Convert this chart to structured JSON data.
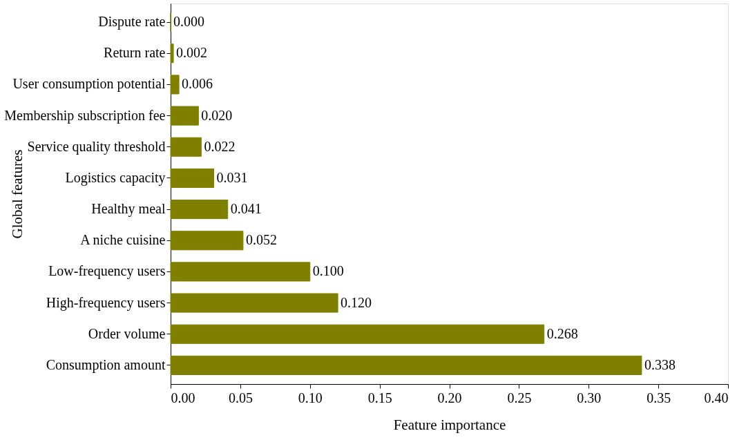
{
  "chart_data": {
    "type": "bar",
    "orientation": "horizontal",
    "xlabel": "Feature importance",
    "ylabel": "Global features",
    "categories": [
      "Dispute rate",
      "Return rate",
      "User consumption potential",
      "Membership subscription fee",
      "Service quality threshold",
      "Logistics capacity",
      "Healthy meal",
      "A niche cuisine",
      "Low-frequency users",
      "High-frequency users",
      "Order volume",
      "Consumption amount"
    ],
    "values": [
      0,
      0.002,
      0.006,
      0.02,
      0.022,
      0.031,
      0.041,
      0.052,
      0.1,
      0.12,
      0.268,
      0.338
    ],
    "value_labels": [
      "0.000",
      "0.002",
      "0.006",
      "0.020",
      "0.022",
      "0.031",
      "0.041",
      "0.052",
      "0.100",
      "0.120",
      "0.268",
      "0.338"
    ],
    "color": "#808000",
    "xlim": [
      0,
      0.4
    ],
    "xticks": [
      {
        "value": 0,
        "label": "0.00"
      },
      {
        "value": 0.05,
        "label": "0.05"
      },
      {
        "value": 0.1,
        "label": "0.10"
      },
      {
        "value": 0.15,
        "label": "0.15"
      },
      {
        "value": 0.2,
        "label": "0.20"
      },
      {
        "value": 0.25,
        "label": "0.25"
      },
      {
        "value": 0.3,
        "label": "0.30"
      },
      {
        "value": 0.35,
        "label": "0.35"
      },
      {
        "value": 0.4,
        "label": "0.40"
      }
    ],
    "grid": false
  }
}
